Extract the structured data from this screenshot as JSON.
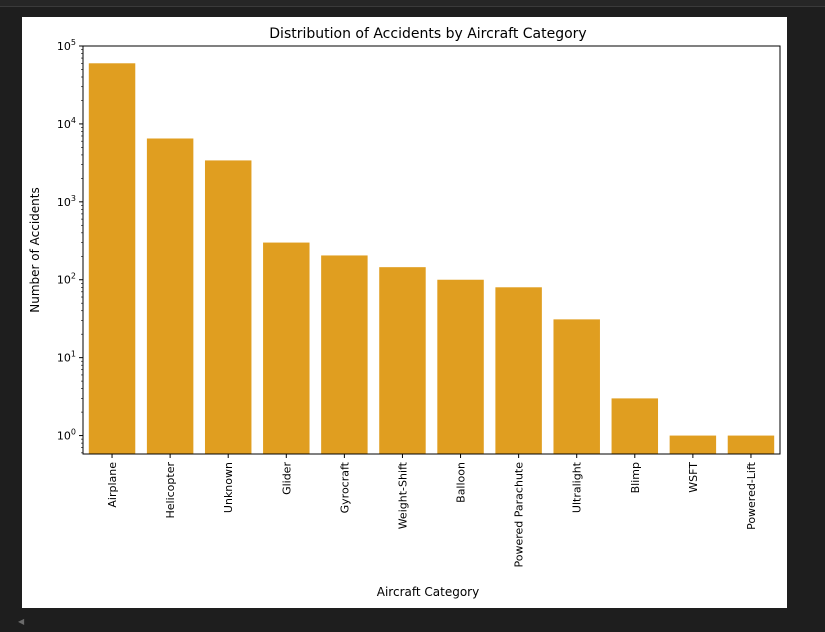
{
  "chart_data": {
    "type": "bar",
    "title": "Distribution of Accidents by Aircraft Category",
    "xlabel": "Aircraft Category",
    "ylabel": "Number of Accidents",
    "yscale": "log",
    "ylim": [
      0.58,
      100000
    ],
    "grid": false,
    "bar_color": "#e09e20",
    "categories": [
      "Airplane",
      "Helicopter",
      "Unknown",
      "Glider",
      "Gyrocraft",
      "Weight-Shift",
      "Balloon",
      "Powered Parachute",
      "Ultralight",
      "Blimp",
      "WSFT",
      "Powered-Lift"
    ],
    "values": [
      60000,
      6500,
      3400,
      300,
      205,
      145,
      100,
      80,
      31,
      3,
      1,
      1
    ],
    "y_ticks": [
      {
        "value": 1,
        "base": "10",
        "exp": "0"
      },
      {
        "value": 10,
        "base": "10",
        "exp": "1"
      },
      {
        "value": 100,
        "base": "10",
        "exp": "2"
      },
      {
        "value": 1000,
        "base": "10",
        "exp": "3"
      },
      {
        "value": 10000,
        "base": "10",
        "exp": "4"
      },
      {
        "value": 100000,
        "base": "10",
        "exp": "5"
      }
    ]
  },
  "ui": {
    "scroll_arrow": "◀"
  }
}
